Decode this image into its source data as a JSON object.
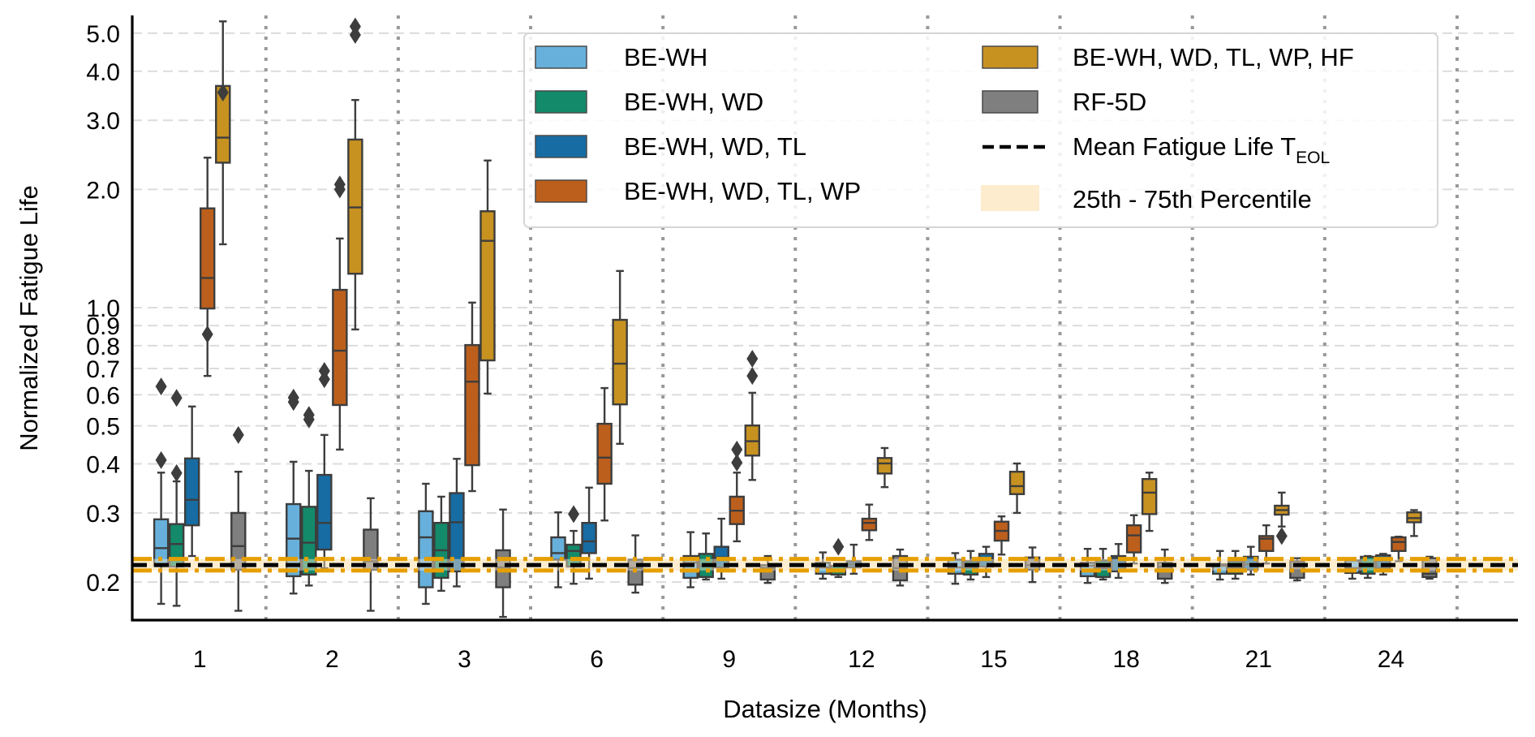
{
  "chart_data": {
    "type": "box",
    "title": "",
    "xlabel": "Datasize (Months)",
    "ylabel": "Normalized Fatigue Life",
    "yscale": "log",
    "ylim": [
      0.16,
      5.55
    ],
    "yticks": [
      0.2,
      0.3,
      0.4,
      0.5,
      0.6,
      0.7,
      0.8,
      0.9,
      1.0,
      2.0,
      3.0,
      4.0,
      5.0
    ],
    "ytick_labels": [
      "0.2",
      "0.3",
      "0.4",
      "0.5",
      "0.6",
      "0.7",
      "0.8",
      "0.9",
      "1.0",
      "2.0",
      "3.0",
      "4.0",
      "5.0"
    ],
    "grid": "y-dashed",
    "categories": [
      "1",
      "2",
      "3",
      "6",
      "9",
      "12",
      "15",
      "18",
      "21",
      "24"
    ],
    "legend_position": "top-right",
    "series": [
      {
        "name": "BE-WH",
        "color": "#67b0db",
        "boxes": [
          {
            "whislo": 0.176,
            "q1": 0.22,
            "med": 0.244,
            "q3": 0.289,
            "whishi": 0.38,
            "fliers": [
              0.409,
              0.63
            ]
          },
          {
            "whislo": 0.187,
            "q1": 0.207,
            "med": 0.258,
            "q3": 0.316,
            "whishi": 0.405,
            "fliers": [
              0.575,
              0.59
            ]
          },
          {
            "whislo": 0.176,
            "q1": 0.194,
            "med": 0.26,
            "q3": 0.303,
            "whishi": 0.356,
            "fliers": []
          },
          {
            "whislo": 0.194,
            "q1": 0.228,
            "med": 0.237,
            "q3": 0.26,
            "whishi": 0.301,
            "fliers": []
          },
          {
            "whislo": 0.194,
            "q1": 0.205,
            "med": 0.224,
            "q3": 0.233,
            "whishi": 0.268,
            "fliers": []
          },
          {
            "whislo": 0.204,
            "q1": 0.21,
            "med": 0.218,
            "q3": 0.224,
            "whishi": 0.238,
            "fliers": []
          },
          {
            "whislo": 0.198,
            "q1": 0.21,
            "med": 0.218,
            "q3": 0.228,
            "whishi": 0.237,
            "fliers": []
          },
          {
            "whislo": 0.199,
            "q1": 0.207,
            "med": 0.22,
            "q3": 0.224,
            "whishi": 0.243,
            "fliers": []
          },
          {
            "whislo": 0.203,
            "q1": 0.21,
            "med": 0.22,
            "q3": 0.222,
            "whishi": 0.24,
            "fliers": []
          },
          {
            "whislo": 0.204,
            "q1": 0.211,
            "med": 0.217,
            "q3": 0.227,
            "whishi": 0.228,
            "fliers": []
          }
        ]
      },
      {
        "name": "BE-WH, WD",
        "color": "#138a6a",
        "boxes": [
          {
            "whislo": 0.174,
            "q1": 0.219,
            "med": 0.25,
            "q3": 0.281,
            "whishi": 0.361,
            "fliers": [
              0.379,
              0.589
            ]
          },
          {
            "whislo": 0.196,
            "q1": 0.209,
            "med": 0.252,
            "q3": 0.311,
            "whishi": 0.384,
            "fliers": [
              0.519,
              0.533
            ]
          },
          {
            "whislo": 0.19,
            "q1": 0.205,
            "med": 0.241,
            "q3": 0.283,
            "whishi": 0.33,
            "fliers": []
          },
          {
            "whislo": 0.198,
            "q1": 0.219,
            "med": 0.24,
            "q3": 0.249,
            "whishi": 0.27,
            "fliers": [
              0.298
            ]
          },
          {
            "whislo": 0.203,
            "q1": 0.206,
            "med": 0.22,
            "q3": 0.236,
            "whishi": 0.266,
            "fliers": []
          },
          {
            "whislo": 0.206,
            "q1": 0.209,
            "med": 0.215,
            "q3": 0.22,
            "whishi": 0.222,
            "fliers": [
              0.246
            ]
          },
          {
            "whislo": 0.203,
            "q1": 0.209,
            "med": 0.218,
            "q3": 0.226,
            "whishi": 0.24,
            "fliers": []
          },
          {
            "whislo": 0.203,
            "q1": 0.206,
            "med": 0.217,
            "q3": 0.227,
            "whishi": 0.243,
            "fliers": []
          },
          {
            "whislo": 0.204,
            "q1": 0.21,
            "med": 0.217,
            "q3": 0.226,
            "whishi": 0.24,
            "fliers": []
          },
          {
            "whislo": 0.205,
            "q1": 0.21,
            "med": 0.22,
            "q3": 0.232,
            "whishi": 0.233,
            "fliers": []
          }
        ]
      },
      {
        "name": "BE-WH, WD, TL",
        "color": "#176ca3",
        "boxes": [
          {
            "whislo": 0.233,
            "q1": 0.279,
            "med": 0.324,
            "q3": 0.413,
            "whishi": 0.56,
            "fliers": []
          },
          {
            "whislo": 0.217,
            "q1": 0.242,
            "med": 0.283,
            "q3": 0.375,
            "whishi": 0.474,
            "fliers": [
              0.657,
              0.69
            ]
          },
          {
            "whislo": 0.195,
            "q1": 0.213,
            "med": 0.284,
            "q3": 0.337,
            "whishi": 0.412,
            "fliers": []
          },
          {
            "whislo": 0.204,
            "q1": 0.237,
            "med": 0.254,
            "q3": 0.283,
            "whishi": 0.348,
            "fliers": []
          },
          {
            "whislo": 0.204,
            "q1": 0.218,
            "med": 0.231,
            "q3": 0.246,
            "whishi": 0.29,
            "fliers": []
          },
          {
            "whislo": 0.21,
            "q1": 0.218,
            "med": 0.222,
            "q3": 0.226,
            "whishi": 0.249,
            "fliers": []
          },
          {
            "whislo": 0.206,
            "q1": 0.219,
            "med": 0.23,
            "q3": 0.236,
            "whishi": 0.246,
            "fliers": []
          },
          {
            "whislo": 0.205,
            "q1": 0.213,
            "med": 0.23,
            "q3": 0.233,
            "whishi": 0.25,
            "fliers": []
          },
          {
            "whislo": 0.209,
            "q1": 0.215,
            "med": 0.222,
            "q3": 0.232,
            "whishi": 0.246,
            "fliers": []
          },
          {
            "whislo": 0.209,
            "q1": 0.217,
            "med": 0.227,
            "q3": 0.234,
            "whishi": 0.236,
            "fliers": []
          }
        ]
      },
      {
        "name": "BE-WH, WD, TL, WP",
        "color": "#bd5f1c",
        "boxes": [
          {
            "whislo": 0.67,
            "q1": 0.995,
            "med": 1.19,
            "q3": 1.79,
            "whishi": 2.41,
            "fliers": [
              0.855
            ]
          },
          {
            "whislo": 0.435,
            "q1": 0.565,
            "med": 0.777,
            "q3": 1.11,
            "whishi": 1.5,
            "fliers": [
              2.0,
              2.06
            ]
          },
          {
            "whislo": 0.341,
            "q1": 0.397,
            "med": 0.648,
            "q3": 0.803,
            "whishi": 1.03,
            "fliers": []
          },
          {
            "whislo": 0.287,
            "q1": 0.356,
            "med": 0.415,
            "q3": 0.506,
            "whishi": 0.624,
            "fliers": []
          },
          {
            "whislo": 0.254,
            "q1": 0.281,
            "med": 0.304,
            "q3": 0.33,
            "whishi": 0.38,
            "fliers": [
              0.403,
              0.435
            ]
          },
          {
            "whislo": 0.256,
            "q1": 0.271,
            "med": 0.283,
            "q3": 0.29,
            "whishi": 0.315,
            "fliers": []
          },
          {
            "whislo": 0.235,
            "q1": 0.255,
            "med": 0.27,
            "q3": 0.285,
            "whishi": 0.294,
            "fliers": []
          },
          {
            "whislo": 0.223,
            "q1": 0.238,
            "med": 0.263,
            "q3": 0.279,
            "whishi": 0.296,
            "fliers": []
          },
          {
            "whislo": 0.223,
            "q1": 0.24,
            "med": 0.258,
            "q3": 0.262,
            "whishi": 0.279,
            "fliers": []
          },
          {
            "whislo": 0.226,
            "q1": 0.24,
            "med": 0.253,
            "q3": 0.26,
            "whishi": 0.261,
            "fliers": []
          }
        ]
      },
      {
        "name": "BE-WH, WD, TL, WP, HF",
        "color": "#c89221",
        "boxes": [
          {
            "whislo": 1.45,
            "q1": 2.34,
            "med": 2.71,
            "q3": 3.67,
            "whishi": 5.36,
            "fliers": [
              3.53
            ]
          },
          {
            "whislo": 0.88,
            "q1": 1.22,
            "med": 1.8,
            "q3": 2.68,
            "whishi": 3.38,
            "fliers": [
              4.95,
              5.2
            ]
          },
          {
            "whislo": 0.604,
            "q1": 0.734,
            "med": 1.48,
            "q3": 1.76,
            "whishi": 2.37,
            "fliers": []
          },
          {
            "whislo": 0.45,
            "q1": 0.567,
            "med": 0.72,
            "q3": 0.931,
            "whishi": 1.24,
            "fliers": []
          },
          {
            "whislo": 0.364,
            "q1": 0.42,
            "med": 0.457,
            "q3": 0.501,
            "whishi": 0.607,
            "fliers": [
              0.67,
              0.741
            ]
          },
          {
            "whislo": 0.349,
            "q1": 0.378,
            "med": 0.401,
            "q3": 0.414,
            "whishi": 0.439,
            "fliers": []
          },
          {
            "whislo": 0.3,
            "q1": 0.335,
            "med": 0.351,
            "q3": 0.382,
            "whishi": 0.401,
            "fliers": []
          },
          {
            "whislo": 0.27,
            "q1": 0.298,
            "med": 0.338,
            "q3": 0.366,
            "whishi": 0.38,
            "fliers": []
          },
          {
            "whislo": 0.277,
            "q1": 0.297,
            "med": 0.305,
            "q3": 0.313,
            "whishi": 0.338,
            "fliers": [
              0.262
            ]
          },
          {
            "whislo": 0.262,
            "q1": 0.284,
            "med": 0.291,
            "q3": 0.301,
            "whishi": 0.305,
            "fliers": []
          }
        ]
      },
      {
        "name": "RF-5D",
        "color": "#7f7f7f",
        "boxes": [
          {
            "whislo": 0.169,
            "q1": 0.215,
            "med": 0.247,
            "q3": 0.3,
            "whishi": 0.382,
            "fliers": [
              0.474
            ]
          },
          {
            "whislo": 0.169,
            "q1": 0.215,
            "med": 0.226,
            "q3": 0.272,
            "whishi": 0.327,
            "fliers": []
          },
          {
            "whislo": 0.163,
            "q1": 0.194,
            "med": 0.218,
            "q3": 0.241,
            "whishi": 0.306,
            "fliers": []
          },
          {
            "whislo": 0.188,
            "q1": 0.197,
            "med": 0.217,
            "q3": 0.228,
            "whishi": 0.263,
            "fliers": []
          },
          {
            "whislo": 0.199,
            "q1": 0.203,
            "med": 0.217,
            "q3": 0.221,
            "whishi": 0.233,
            "fliers": []
          },
          {
            "whislo": 0.196,
            "q1": 0.202,
            "med": 0.217,
            "q3": 0.233,
            "whishi": 0.242,
            "fliers": []
          },
          {
            "whislo": 0.2,
            "q1": 0.215,
            "med": 0.221,
            "q3": 0.231,
            "whishi": 0.245,
            "fliers": []
          },
          {
            "whislo": 0.199,
            "q1": 0.204,
            "med": 0.219,
            "q3": 0.224,
            "whishi": 0.242,
            "fliers": []
          },
          {
            "whislo": 0.202,
            "q1": 0.205,
            "med": 0.215,
            "q3": 0.226,
            "whishi": 0.23,
            "fliers": []
          },
          {
            "whislo": 0.204,
            "q1": 0.206,
            "med": 0.21,
            "q3": 0.23,
            "whishi": 0.232,
            "fliers": []
          }
        ]
      }
    ],
    "reference": {
      "mean_label": "Mean Fatigue Life T",
      "mean_subscript": "EOL",
      "mean_value": 0.221,
      "mean_color": "#000000",
      "band_label": "25th - 75th Percentile",
      "band_low": 0.214,
      "band_high": 0.229,
      "band_fill": "#fdeccd",
      "band_edge_color": "#e69f00"
    }
  }
}
